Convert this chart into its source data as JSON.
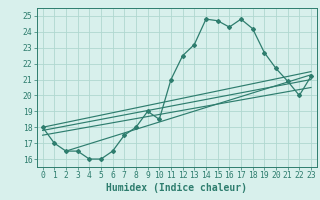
{
  "xlabel": "Humidex (Indice chaleur)",
  "x": [
    0,
    1,
    2,
    3,
    4,
    5,
    6,
    7,
    8,
    9,
    10,
    11,
    12,
    13,
    14,
    15,
    16,
    17,
    18,
    19,
    20,
    21,
    22,
    23
  ],
  "y_main": [
    18,
    17,
    16.5,
    16.5,
    16,
    16,
    16.5,
    17.5,
    18,
    19,
    18.5,
    21,
    22.5,
    23.2,
    24.8,
    24.7,
    24.3,
    24.8,
    24.2,
    22.7,
    21.7,
    20.9,
    20.0,
    21.2
  ],
  "trend_lines": [
    {
      "x0": 0,
      "y0": 18.0,
      "x1": 23,
      "y1": 21.5
    },
    {
      "x0": 0,
      "y0": 17.8,
      "x1": 23,
      "y1": 21.0
    },
    {
      "x0": 0,
      "y0": 17.5,
      "x1": 23,
      "y1": 20.5
    },
    {
      "x0": 2,
      "y0": 16.5,
      "x1": 23,
      "y1": 21.3
    }
  ],
  "line_color": "#2e7d6e",
  "bg_color": "#d8f0ec",
  "grid_color": "#b0d8d0",
  "ylim": [
    15.5,
    25.5
  ],
  "yticks": [
    16,
    17,
    18,
    19,
    20,
    21,
    22,
    23,
    24,
    25
  ],
  "xticks": [
    0,
    1,
    2,
    3,
    4,
    5,
    6,
    7,
    8,
    9,
    10,
    11,
    12,
    13,
    14,
    15,
    16,
    17,
    18,
    19,
    20,
    21,
    22,
    23
  ],
  "tick_fontsize": 5.8,
  "xlabel_fontsize": 7.0
}
